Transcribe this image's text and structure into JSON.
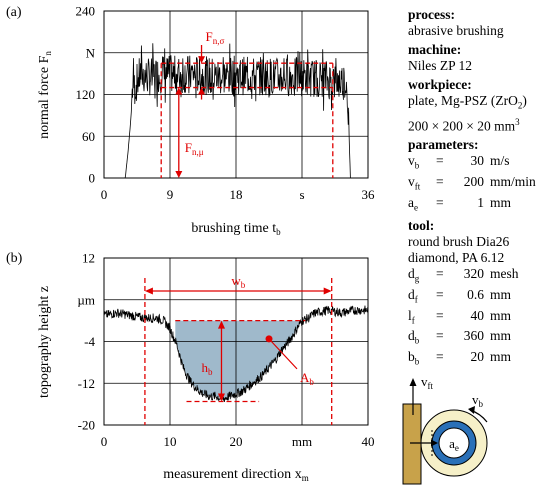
{
  "colors": {
    "signal": "#000000",
    "annotation": "#e00000",
    "fill_area": "#9fb9cb",
    "brush_holder": "#c8a24a",
    "brush_ring_outer": "#f6f0c8",
    "brush_ring_mid": "#2a70b8",
    "contact_arrow": "#2a70b8"
  },
  "chart_data": [
    {
      "type": "line",
      "panel_label": "(a)",
      "xlabel": "brushing time",
      "xlabel_sub": "b",
      "xlabel_prefix": "t",
      "ylabel": "normal force F",
      "ylabel_sub": "n",
      "xlim": [
        0,
        36
      ],
      "ylim": [
        0,
        240
      ],
      "x_ticks": [
        "0",
        "9",
        "18",
        "s",
        "36"
      ],
      "x_tick_values": [
        0,
        9,
        18,
        27,
        36
      ],
      "y_ticks": [
        "0",
        "60",
        "120",
        "N",
        "240"
      ],
      "y_tick_values": [
        0,
        60,
        120,
        180,
        240
      ],
      "grid": true,
      "series": [
        {
          "x": [
            2.4,
            2.9,
            3.3,
            3.7,
            3.9,
            4.2,
            4.4,
            5,
            6,
            8,
            10,
            12,
            14,
            16,
            18,
            20,
            22,
            24,
            26,
            28,
            30,
            31.5,
            32.8,
            33.2,
            33.6,
            34,
            35.5
          ],
          "y": [
            0,
            0,
            40,
            90,
            140,
            130,
            135,
            150,
            145,
            150,
            148,
            150,
            147,
            146,
            148,
            146,
            147,
            145,
            146,
            144,
            143,
            138,
            140,
            135,
            0,
            0,
            0
          ]
        }
      ],
      "annotations": {
        "sigma_label": "F",
        "sigma_sub": "n,σ",
        "mu_label": "F",
        "mu_sub": "n,μ",
        "sigma_band": [
          130,
          165
        ],
        "mu_value": 130,
        "mu_range_x": [
          7.8,
          31.2
        ]
      }
    },
    {
      "type": "area",
      "panel_label": "(b)",
      "xlabel": "measurement direction",
      "xlabel_prefix": "x",
      "xlabel_sub": "m",
      "ylabel": "topography height z",
      "xlim": [
        0,
        40
      ],
      "ylim": [
        -20,
        12
      ],
      "x_ticks": [
        "0",
        "10",
        "20",
        "mm",
        "40"
      ],
      "x_tick_values": [
        0,
        10,
        20,
        30,
        40
      ],
      "y_ticks": [
        "-20",
        "-12",
        "-4",
        "µm",
        "12"
      ],
      "y_tick_values": [
        -20,
        -12,
        -4,
        4,
        12
      ],
      "grid": true,
      "series": [
        {
          "x": [
            0,
            2,
            4,
            6,
            8,
            9,
            10,
            11,
            12,
            13,
            14,
            15,
            16,
            17,
            18,
            19,
            20,
            21,
            22,
            23,
            24,
            25,
            26,
            27,
            28,
            29,
            30,
            31,
            32,
            34,
            36,
            38,
            40
          ],
          "y": [
            1,
            1.5,
            1,
            0.5,
            0.5,
            0,
            -1.5,
            -4.5,
            -9,
            -11.5,
            -13,
            -14,
            -14.5,
            -14.5,
            -15,
            -14.5,
            -14,
            -13.5,
            -12.5,
            -11.5,
            -10.5,
            -9,
            -7.5,
            -5.5,
            -4,
            -2,
            0,
            0.5,
            1.5,
            2,
            1.5,
            2,
            2
          ]
        }
      ],
      "annotations": {
        "wb_label": "w",
        "wb_sub": "b",
        "wb_range": [
          6.2,
          34.5
        ],
        "hb_label": "h",
        "hb_sub": "b",
        "hb_range": [
          -15.5,
          0
        ],
        "ab_label": "A",
        "ab_sub": "b",
        "ab_point": [
          25,
          -3.5
        ],
        "top_dash_range": [
          10.8,
          30.5
        ],
        "bottom_dash_range": [
          12.5,
          23.5
        ]
      }
    }
  ],
  "info": {
    "process_head": "process:",
    "process_value": "abrasive brushing",
    "machine_head": "machine:",
    "machine_value": "Niles ZP 12",
    "workpiece_head": "workpiece:",
    "workpiece_line1": "plate, Mg-PSZ (ZrO",
    "workpiece_line1_sub": "2",
    "workpiece_line1_end": ")",
    "workpiece_line2": "200 × 200 × 20 mm",
    "workpiece_line2_sup": "3",
    "parameters_head": "parameters:",
    "parameters": [
      {
        "sym": "v",
        "sub": "b",
        "eq": "=",
        "val": "30",
        "unit": "m/s"
      },
      {
        "sym": "v",
        "sub": "ft",
        "eq": "=",
        "val": "200",
        "unit": "mm/min"
      },
      {
        "sym": "a",
        "sub": "e",
        "eq": "=",
        "val": "1",
        "unit": "mm"
      }
    ],
    "tool_head": "tool:",
    "tool_line1": "round brush Dia26",
    "tool_line2": "diamond, PA 6.12",
    "tool_params": [
      {
        "sym": "d",
        "sub": "g",
        "eq": "=",
        "val": "320",
        "unit": "mesh"
      },
      {
        "sym": "d",
        "sub": "f",
        "eq": "=",
        "val": "0.6",
        "unit": "mm"
      },
      {
        "sym": "l",
        "sub": "f",
        "eq": "=",
        "val": "40",
        "unit": "mm"
      },
      {
        "sym": "d",
        "sub": "b",
        "eq": "=",
        "val": "360",
        "unit": "mm"
      },
      {
        "sym": "b",
        "sub": "b",
        "eq": "=",
        "val": "20",
        "unit": "mm"
      }
    ]
  },
  "sketch": {
    "vft_label": "v",
    "vft_sub": "ft",
    "vb_label": "v",
    "vb_sub": "b",
    "ae_label": "a",
    "ae_sub": "e"
  }
}
